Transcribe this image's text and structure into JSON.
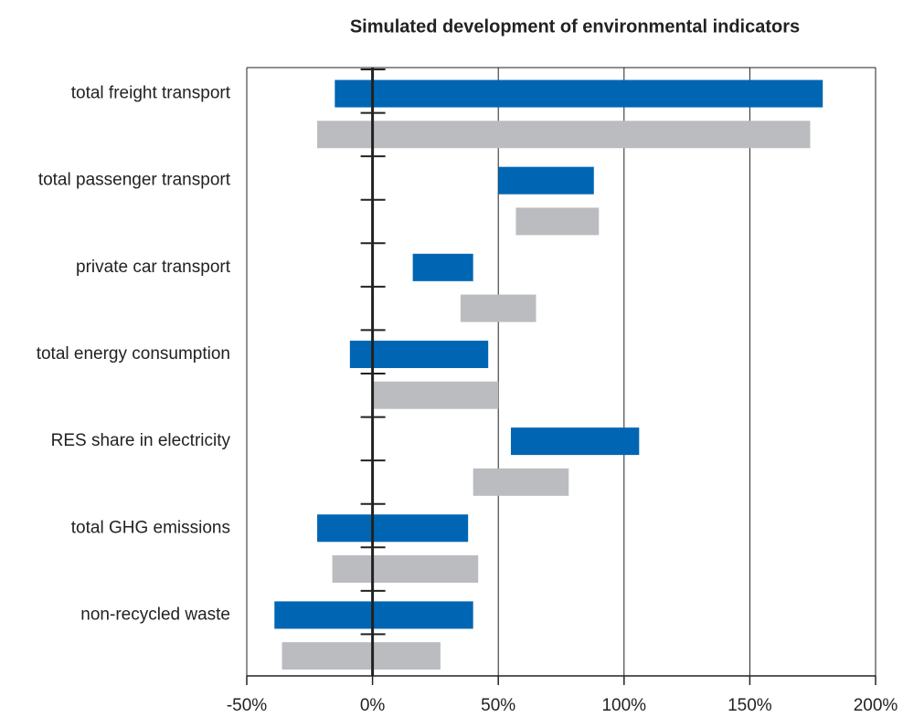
{
  "chart_data": {
    "type": "range_bar",
    "title": "Simulated development of environmental indicators",
    "categories": [
      "total freight transport",
      "total passenger transport",
      "private car transport",
      "total energy consumption",
      "RES share in electricity",
      "total GHG emissions",
      "non-recycled waste"
    ],
    "series": [
      {
        "color": "#0066b3",
        "low": [
          -15,
          50,
          16,
          -9,
          55,
          -22,
          -39
        ],
        "high": [
          179,
          88,
          40,
          46,
          106,
          38,
          40
        ]
      },
      {
        "color": "#bbbcbf",
        "low": [
          -22,
          57,
          35,
          0,
          40,
          -16,
          -36
        ],
        "high": [
          174,
          90,
          65,
          50,
          78,
          42,
          27
        ]
      }
    ],
    "xlim": [
      -50,
      200
    ],
    "xticks": [
      {
        "value": -50,
        "label": "-50%"
      },
      {
        "value": 0,
        "label": "0%"
      },
      {
        "value": 50,
        "label": "50%"
      },
      {
        "value": 100,
        "label": "100%"
      },
      {
        "value": 150,
        "label": "150%"
      },
      {
        "value": 200,
        "label": "200%"
      }
    ],
    "grid": true
  }
}
